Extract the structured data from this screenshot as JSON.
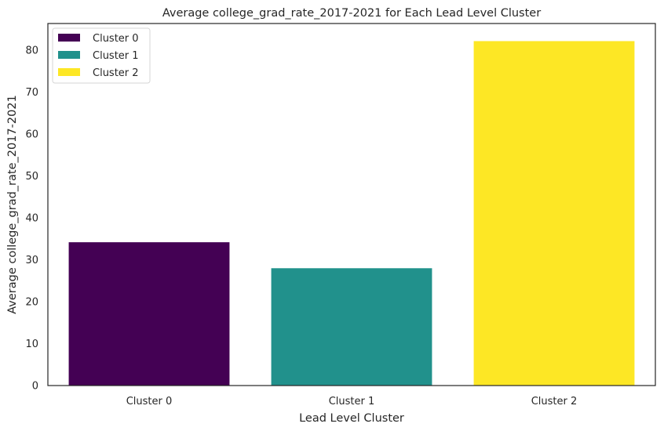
{
  "chart_data": {
    "type": "bar",
    "title": "Average college_grad_rate_2017-2021 for Each Lead Level Cluster",
    "xlabel": "Lead Level Cluster",
    "ylabel": "Average college_grad_rate_2017-2021",
    "categories": [
      "Cluster 0",
      "Cluster 1",
      "Cluster 2"
    ],
    "values": [
      34.2,
      28.0,
      82.2
    ],
    "colors": [
      "#440154",
      "#21918c",
      "#fde725"
    ],
    "ylim": [
      0,
      86.4
    ],
    "yticks": [
      0,
      10,
      20,
      30,
      40,
      50,
      60,
      70,
      80
    ],
    "grid": false,
    "legend": {
      "placement": "top-left",
      "entries": [
        "Cluster 0",
        "Cluster 1",
        "Cluster 2"
      ]
    }
  }
}
